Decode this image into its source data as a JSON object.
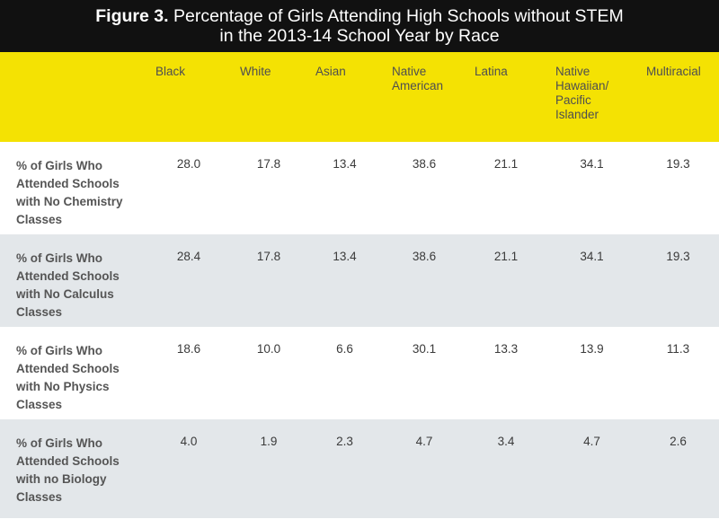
{
  "title": {
    "label": "Figure 3.",
    "line1": "Percentage of Girls Attending High Schools without STEM",
    "line2": "in the 2013-14 School Year by Race"
  },
  "colors": {
    "title_bg": "#111111",
    "header_bg": "#f4e203",
    "stripe_bg": "#e3e7ea",
    "text": "#4e4e50"
  },
  "chart_data": {
    "type": "table",
    "title": "Figure 3. Percentage of Girls Attending High Schools without STEM in the 2013-14 School Year by Race",
    "columns": [
      "Black",
      "White",
      "Asian",
      "Native American",
      "Latina",
      "Native Hawaiian/ Pacific Islander",
      "Multiracial"
    ],
    "rows": [
      {
        "label": "% of Girls Who Attended Schools with No Chemistry Classes",
        "values": [
          "28.0",
          "17.8",
          "13.4",
          "38.6",
          "21.1",
          "34.1",
          "19.3"
        ]
      },
      {
        "label": "% of Girls Who Attended Schools with No Calculus Classes",
        "values": [
          "28.4",
          "17.8",
          "13.4",
          "38.6",
          "21.1",
          "34.1",
          "19.3"
        ]
      },
      {
        "label": "% of Girls Who Attended Schools with No Physics Classes",
        "values": [
          "18.6",
          "10.0",
          "6.6",
          "30.1",
          "13.3",
          "13.9",
          "11.3"
        ]
      },
      {
        "label": "% of Girls Who Attended Schools with no Biology Classes",
        "values": [
          "4.0",
          "1.9",
          "2.3",
          "4.7",
          "3.4",
          "4.7",
          "2.6"
        ]
      }
    ]
  }
}
